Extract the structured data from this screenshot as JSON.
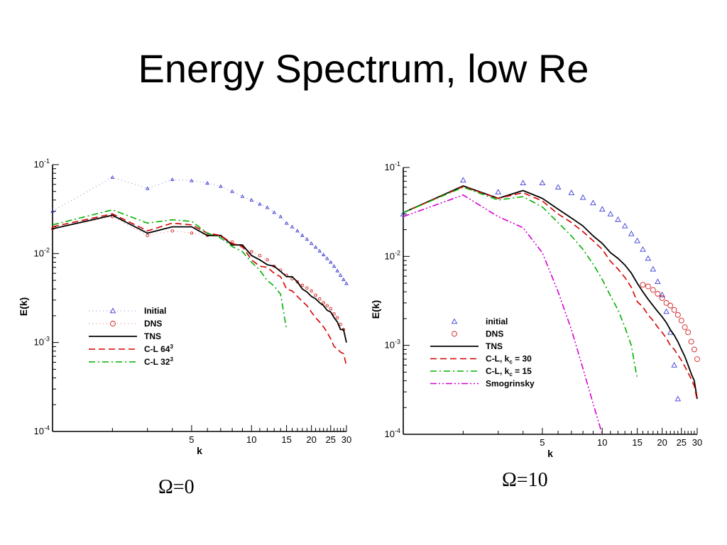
{
  "slide": {
    "title": "Energy Spectrum, low Re",
    "caption_left": "Ω=0",
    "caption_right": "Ω=10"
  },
  "colors": {
    "initial": "#3b3bd6",
    "dns": "#d62020",
    "tns": "#000000",
    "cl_fine": "#d60000",
    "cl_coarse": "#00b000",
    "smagorinsky": "#d400d4"
  },
  "chart_data": [
    {
      "type": "line",
      "xlabel": "k",
      "ylabel": "E(k)",
      "xscale": "log",
      "yscale": "log",
      "xlim": [
        1,
        30
      ],
      "ylim": [
        0.0001,
        0.1
      ],
      "x_ticks": [
        5,
        10,
        15,
        20,
        25,
        30
      ],
      "x_tick_labels": [
        "5",
        "10",
        "15",
        "20",
        "25",
        "30"
      ],
      "y_ticks": [
        0.0001,
        0.001,
        0.01,
        0.1
      ],
      "y_tick_labels": [
        {
          "base": "10",
          "exp": "-4"
        },
        {
          "base": "10",
          "exp": "-3"
        },
        {
          "base": "10",
          "exp": "-2"
        },
        {
          "base": "10",
          "exp": "-1"
        }
      ],
      "legend_position": "center-left",
      "series": [
        {
          "key": "initial",
          "name": "Initial",
          "style": "dotted-triangles",
          "x": [
            1,
            2,
            3,
            4,
            5,
            6,
            7,
            8,
            9,
            10,
            11,
            12,
            13,
            14,
            15,
            16,
            17,
            18,
            19,
            20,
            21,
            22,
            23,
            24,
            25,
            26,
            27,
            28,
            29,
            30
          ],
          "y": [
            0.03,
            0.072,
            0.054,
            0.068,
            0.066,
            0.062,
            0.057,
            0.05,
            0.044,
            0.04,
            0.036,
            0.033,
            0.029,
            0.026,
            0.022,
            0.02,
            0.018,
            0.016,
            0.0145,
            0.013,
            0.0118,
            0.0107,
            0.0097,
            0.0088,
            0.008,
            0.0072,
            0.0064,
            0.0057,
            0.0051,
            0.0046
          ]
        },
        {
          "key": "dns",
          "name": "DNS",
          "style": "dotted-circles",
          "x": [
            1,
            2,
            3,
            4,
            5,
            6,
            7,
            8,
            9,
            10,
            11,
            12,
            13,
            14,
            15,
            16,
            17,
            18,
            19,
            20,
            21,
            22,
            23,
            24,
            25,
            26,
            27,
            28,
            29
          ],
          "y": [
            0.019,
            0.026,
            0.016,
            0.018,
            0.017,
            0.016,
            0.0155,
            0.0135,
            0.012,
            0.0105,
            0.0095,
            0.0085,
            0.0072,
            0.0065,
            0.0057,
            0.0052,
            0.0048,
            0.0044,
            0.0041,
            0.0038,
            0.0034,
            0.0031,
            0.0028,
            0.0026,
            0.0024,
            0.0021,
            0.0019,
            0.0016,
            0.0014
          ]
        },
        {
          "key": "tns",
          "name": "TNS",
          "style": "solid",
          "x": [
            1,
            2,
            3,
            4,
            5,
            6,
            7,
            8,
            9,
            10,
            11,
            12,
            13,
            14,
            15,
            16,
            17,
            18,
            19,
            20,
            21,
            22,
            23,
            24,
            25,
            26,
            27,
            28,
            29,
            30
          ],
          "y": [
            0.019,
            0.027,
            0.017,
            0.02,
            0.02,
            0.016,
            0.016,
            0.0125,
            0.0125,
            0.0095,
            0.0085,
            0.0075,
            0.0072,
            0.0063,
            0.0055,
            0.0055,
            0.0048,
            0.004,
            0.0037,
            0.0033,
            0.0031,
            0.0028,
            0.0026,
            0.0023,
            0.0022,
            0.0019,
            0.0017,
            0.0014,
            0.0014,
            0.001
          ]
        },
        {
          "key": "cl_fine",
          "name_parts": {
            "text": "C-L 64",
            "sup": "3"
          },
          "style": "dashed",
          "x": [
            1,
            2,
            3,
            4,
            5,
            6,
            7,
            8,
            9,
            10,
            11,
            12,
            13,
            14,
            15,
            16,
            17,
            18,
            19,
            20,
            21,
            22,
            23,
            24,
            25,
            26,
            27,
            28,
            29,
            30
          ],
          "y": [
            0.02,
            0.028,
            0.018,
            0.022,
            0.021,
            0.017,
            0.016,
            0.013,
            0.012,
            0.0085,
            0.0072,
            0.007,
            0.006,
            0.0055,
            0.004,
            0.0038,
            0.0033,
            0.0029,
            0.0026,
            0.0022,
            0.0019,
            0.0017,
            0.0015,
            0.0013,
            0.0011,
            0.0009,
            0.00085,
            0.00078,
            0.00075,
            0.00055
          ]
        },
        {
          "key": "cl_coarse",
          "name_parts": {
            "text": "C-L 32",
            "sup": "3"
          },
          "style": "dash-dot",
          "x": [
            1,
            2,
            3,
            4,
            5,
            6,
            7,
            8,
            9,
            10,
            11,
            12,
            13,
            14,
            15
          ],
          "y": [
            0.021,
            0.031,
            0.022,
            0.024,
            0.023,
            0.017,
            0.015,
            0.012,
            0.0105,
            0.008,
            0.0065,
            0.005,
            0.0043,
            0.0035,
            0.0014
          ]
        }
      ]
    },
    {
      "type": "line",
      "xlabel": "k",
      "ylabel": "E(k)",
      "xscale": "log",
      "yscale": "log",
      "xlim": [
        1,
        30
      ],
      "ylim": [
        0.0001,
        0.1
      ],
      "x_ticks": [
        5,
        10,
        15,
        20,
        25,
        30
      ],
      "x_tick_labels": [
        "5",
        "10",
        "15",
        "20",
        "25",
        "30"
      ],
      "y_ticks": [
        0.0001,
        0.001,
        0.01,
        0.1
      ],
      "y_tick_labels": [
        {
          "base": "10",
          "exp": "-4"
        },
        {
          "base": "10",
          "exp": "-3"
        },
        {
          "base": "10",
          "exp": "-2"
        },
        {
          "base": "10",
          "exp": "-1"
        }
      ],
      "legend_position": "center-left",
      "series": [
        {
          "key": "initial",
          "name": "initial",
          "style": "triangles",
          "x": [
            1,
            2,
            3,
            4,
            5,
            6,
            7,
            8,
            9,
            10,
            11,
            12,
            13,
            14,
            15,
            16,
            17,
            18,
            19,
            20,
            21,
            22,
            23,
            24
          ],
          "y": [
            0.03,
            0.072,
            0.053,
            0.067,
            0.067,
            0.06,
            0.052,
            0.046,
            0.04,
            0.034,
            0.03,
            0.026,
            0.022,
            0.018,
            0.015,
            0.012,
            0.0095,
            0.0072,
            0.0052,
            0.0037,
            0.0024,
            0.0014,
            0.0006,
            0.00025
          ]
        },
        {
          "key": "dns",
          "name": "DNS",
          "style": "circles",
          "x": [
            16,
            17,
            18,
            19,
            20,
            21,
            22,
            23,
            24,
            25,
            26,
            27,
            28,
            29,
            30
          ],
          "y": [
            0.0048,
            0.0046,
            0.0042,
            0.0038,
            0.0034,
            0.003,
            0.0028,
            0.0025,
            0.0022,
            0.0019,
            0.0016,
            0.0014,
            0.0011,
            0.0009,
            0.0007
          ]
        },
        {
          "key": "tns",
          "name": "TNS",
          "style": "solid",
          "x": [
            1,
            2,
            3,
            4,
            5,
            6,
            7,
            8,
            9,
            10,
            11,
            12,
            13,
            14,
            15,
            16,
            17,
            18,
            19,
            20,
            21,
            22,
            23,
            24,
            25,
            26,
            27,
            28,
            29,
            30
          ],
          "y": [
            0.031,
            0.062,
            0.045,
            0.055,
            0.045,
            0.034,
            0.027,
            0.022,
            0.017,
            0.014,
            0.011,
            0.0095,
            0.008,
            0.0065,
            0.005,
            0.004,
            0.0033,
            0.0028,
            0.0024,
            0.0021,
            0.0018,
            0.0015,
            0.0013,
            0.0011,
            0.0009,
            0.00075,
            0.0006,
            0.00048,
            0.0004,
            0.00025
          ]
        },
        {
          "key": "cl_fine",
          "name_parts": {
            "text": "C-L, k",
            "sub": "c",
            "rest": " = 30"
          },
          "style": "dashed",
          "x": [
            1,
            2,
            3,
            4,
            5,
            6,
            7,
            8,
            9,
            10,
            11,
            12,
            13,
            14,
            15,
            16,
            17,
            18,
            19,
            20,
            21,
            22,
            23,
            24,
            25,
            26,
            27,
            28,
            29,
            30
          ],
          "y": [
            0.031,
            0.061,
            0.045,
            0.052,
            0.042,
            0.03,
            0.024,
            0.019,
            0.015,
            0.012,
            0.0088,
            0.0072,
            0.0058,
            0.0045,
            0.0031,
            0.0027,
            0.0022,
            0.0019,
            0.0016,
            0.0014,
            0.0012,
            0.001,
            0.0009,
            0.00078,
            0.00068,
            0.00058,
            0.00049,
            0.00042,
            0.00035,
            0.00024
          ]
        },
        {
          "key": "cl_coarse",
          "name_parts": {
            "text": "C-L, k",
            "sub": "c",
            "rest": " = 15"
          },
          "style": "dash-dot",
          "x": [
            1,
            2,
            3,
            4,
            5,
            6,
            7,
            8,
            9,
            10,
            11,
            12,
            13,
            14,
            15
          ],
          "y": [
            0.031,
            0.06,
            0.043,
            0.047,
            0.036,
            0.024,
            0.017,
            0.012,
            0.0082,
            0.0055,
            0.0036,
            0.0025,
            0.0016,
            0.001,
            0.00042
          ]
        },
        {
          "key": "smagorinsky",
          "name": "Smogrinsky",
          "style": "dash-dot-dot",
          "x": [
            1,
            2,
            3,
            4,
            5,
            6,
            7,
            8,
            9,
            10
          ],
          "y": [
            0.028,
            0.049,
            0.028,
            0.021,
            0.011,
            0.004,
            0.0015,
            0.00055,
            0.00022,
            0.0001
          ]
        }
      ]
    }
  ]
}
